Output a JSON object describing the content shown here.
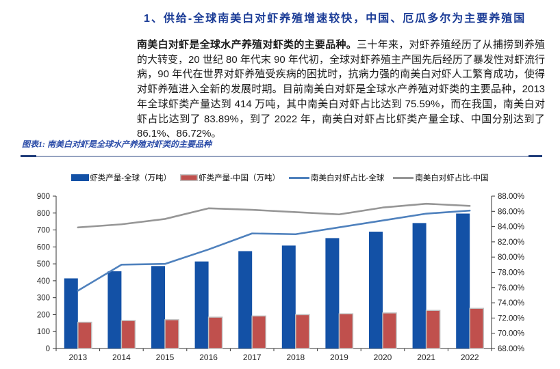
{
  "page": {
    "section_title": "1、供给-全球南美白对虾养殖增速较快，中国、厄瓜多尔为主要养殖国",
    "body_lead": "南美白对虾是全球水产养殖对虾类的主要品种。",
    "body_rest": "三十年来，对虾养殖经历了从捕捞到养殖的大转变，20 世纪 80 年代末 90 年代初，全球对虾养殖主产国先后经历了暴发性对虾流行病，90 年代在世界对虾养殖受疾病的困扰时，抗病力强的南美白对虾人工繁育成功，使得对虾养殖进入全新的发展时期。目前南美白对虾是全球水产养殖对虾类的主要品种，2013 年全球虾类产量达到 414 万吨，其中南美白对虾占比达到 75.59%，而在我国，南美白对虾占比达到了 83.89%，到了 2022 年，南美白对虾占比虾类产量全球、中国分别达到了 86.1%、86.72%。",
    "figure_caption": "图表1: 南美白对虾是全球水产养殖对虾类的主要品种"
  },
  "colors": {
    "title_blue": "#1a3b96",
    "caption_blue": "#2b4ca8",
    "rule_blue": "#1f3c7a",
    "bar_global": "#1351a6",
    "bar_china": "#c0504d",
    "bar_china_border": "#c0c0c0",
    "line_global": "#4f81bd",
    "line_china": "#969696",
    "axis": "#333333",
    "tick_text": "#222222"
  },
  "chart_data": {
    "type": "combo",
    "categories": [
      "2013",
      "2014",
      "2015",
      "2016",
      "2017",
      "2018",
      "2019",
      "2020",
      "2021",
      "2022"
    ],
    "series": [
      {
        "name": "虾类产量-全球（万吨）",
        "type": "bar",
        "axis": "left",
        "color_key": "bar_global",
        "values": [
          414,
          456,
          487,
          514,
          575,
          608,
          652,
          690,
          741,
          797
        ]
      },
      {
        "name": "虾类产量-中国（万吨）",
        "type": "bar",
        "axis": "left",
        "color_key": "bar_china",
        "values": [
          155,
          165,
          170,
          185,
          192,
          200,
          205,
          210,
          225,
          237
        ]
      },
      {
        "name": "南美白对虾占比-全球",
        "type": "line",
        "axis": "right",
        "color_key": "line_global",
        "values": [
          75.59,
          79.0,
          79.1,
          81.0,
          83.1,
          83.0,
          83.9,
          84.8,
          85.7,
          86.1
        ]
      },
      {
        "name": "南美白对虾占比-中国",
        "type": "line",
        "axis": "right",
        "color_key": "line_china",
        "values": [
          83.89,
          84.3,
          85.0,
          86.4,
          86.2,
          85.9,
          85.6,
          86.5,
          87.0,
          86.72
        ]
      }
    ],
    "left_axis": {
      "min": 0,
      "max": 900,
      "tick_labels": [
        "0",
        "100",
        "200",
        "300",
        "400",
        "500",
        "600",
        "700",
        "800",
        "900"
      ]
    },
    "right_axis": {
      "min": 68,
      "max": 88,
      "tick_labels": [
        "68.00%",
        "70.00%",
        "72.00%",
        "74.00%",
        "76.00%",
        "78.00%",
        "80.00%",
        "82.00%",
        "84.00%",
        "86.00%",
        "88.00%"
      ]
    },
    "legend_position": "top",
    "grid": false
  }
}
